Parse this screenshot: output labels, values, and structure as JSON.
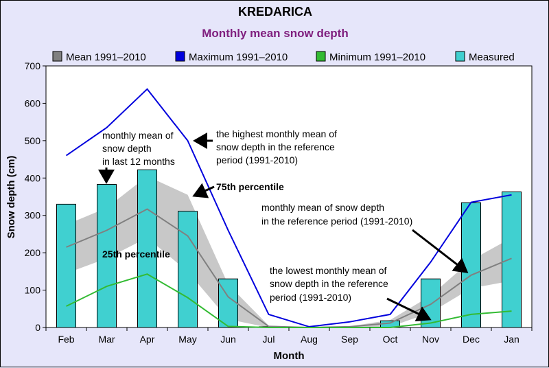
{
  "chart_data": {
    "type": "bar",
    "title": "KREDARICA",
    "subtitle": "Monthly mean snow depth",
    "xlabel": "Month",
    "ylabel": "Snow depth (cm)",
    "ylim": [
      0,
      700
    ],
    "yticks": [
      0,
      100,
      200,
      300,
      400,
      500,
      600,
      700
    ],
    "grid": false,
    "legend_position": "top",
    "categories": [
      "Feb",
      "Mar",
      "Apr",
      "May",
      "Jun",
      "Jul",
      "Aug",
      "Sep",
      "Oct",
      "Nov",
      "Dec",
      "Jan"
    ],
    "series": [
      {
        "name": "Mean 1991–2010",
        "kind": "line",
        "color": "#808080",
        "values": [
          215,
          260,
          317,
          245,
          82,
          3,
          0,
          2,
          12,
          62,
          140,
          185
        ]
      },
      {
        "name": "Maximum 1991–2010",
        "kind": "line",
        "color": "#0000dd",
        "values": [
          460,
          535,
          638,
          500,
          260,
          35,
          2,
          15,
          35,
          175,
          335,
          355
        ]
      },
      {
        "name": "Minimum 1991–2010",
        "kind": "line",
        "color": "#33bb33",
        "values": [
          57,
          110,
          143,
          80,
          3,
          0,
          0,
          0,
          0,
          12,
          35,
          44
        ]
      },
      {
        "name": "Measured",
        "kind": "bar",
        "color": "#40d0d0",
        "values": [
          330,
          383,
          422,
          311,
          130,
          2,
          0,
          0,
          18,
          130,
          334,
          363
        ]
      }
    ],
    "percentile_band": {
      "color": "#c8c8c8",
      "p25": [
        145,
        185,
        240,
        150,
        22,
        0,
        0,
        0,
        2,
        40,
        105,
        125
      ],
      "p75": [
        275,
        320,
        405,
        355,
        115,
        5,
        0,
        3,
        20,
        85,
        180,
        240
      ]
    },
    "annotations": {
      "measured_note": [
        "monthly mean of",
        "snow depth",
        "in last 12 months"
      ],
      "highest_note": [
        "the highest monthly mean of",
        "snow depth in the reference",
        "period (1991-2010)"
      ],
      "p75_note": "75th percentile",
      "mean_note": [
        "monthly mean of snow depth",
        "in the reference period (1991-2010)"
      ],
      "p25_note": "25th percentile",
      "lowest_note": [
        "the lowest monthly mean of",
        "snow depth in the reference",
        "period (1991-2010)"
      ]
    }
  }
}
